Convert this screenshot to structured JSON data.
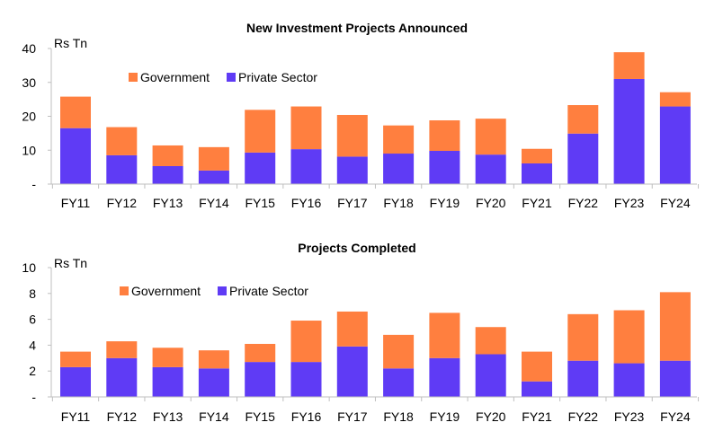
{
  "colors": {
    "government": "#FF7F3F",
    "private": "#5F3BF5",
    "axis": "#bfbfbf"
  },
  "chart_data": [
    {
      "type": "bar",
      "stacked": true,
      "title": "New Investment Projects Announced",
      "unit_label": "Rs Tn",
      "ylim": [
        0,
        40
      ],
      "yticks": [
        0,
        10,
        20,
        30,
        40
      ],
      "ytick_labels": [
        "-",
        "10",
        "20",
        "30",
        "40"
      ],
      "grid": false,
      "legend_position": "top-left",
      "categories": [
        "FY11",
        "FY12",
        "FY13",
        "FY14",
        "FY15",
        "FY16",
        "FY17",
        "FY18",
        "FY19",
        "FY20",
        "FY21",
        "FY22",
        "FY23",
        "FY24"
      ],
      "series": [
        {
          "name": "Private Sector",
          "color_key": "private",
          "values": [
            16.5,
            8.5,
            5.3,
            4.0,
            9.3,
            10.3,
            8.1,
            9.0,
            9.8,
            8.7,
            6.1,
            14.9,
            31.0,
            22.9
          ]
        },
        {
          "name": "Government",
          "color_key": "government",
          "values": [
            9.3,
            8.3,
            6.1,
            6.9,
            12.6,
            12.6,
            12.3,
            8.3,
            9.0,
            10.6,
            4.3,
            8.4,
            7.9,
            4.2
          ]
        }
      ],
      "legend_order": [
        "Government",
        "Private Sector"
      ]
    },
    {
      "type": "bar",
      "stacked": true,
      "title": "Projects Completed",
      "unit_label": "Rs Tn",
      "ylim": [
        0,
        10
      ],
      "yticks": [
        0,
        2,
        4,
        6,
        8,
        10
      ],
      "ytick_labels": [
        "-",
        "2",
        "4",
        "6",
        "8",
        "10"
      ],
      "grid": false,
      "legend_position": "top-left",
      "categories": [
        "FY11",
        "FY12",
        "FY13",
        "FY14",
        "FY15",
        "FY16",
        "FY17",
        "FY18",
        "FY19",
        "FY20",
        "FY21",
        "FY22",
        "FY23",
        "FY24"
      ],
      "series": [
        {
          "name": "Private Sector",
          "color_key": "private",
          "values": [
            2.3,
            3.0,
            2.3,
            2.2,
            2.7,
            2.7,
            3.9,
            2.2,
            3.0,
            3.3,
            1.2,
            2.8,
            2.6,
            2.8
          ]
        },
        {
          "name": "Government",
          "color_key": "government",
          "values": [
            1.2,
            1.3,
            1.5,
            1.4,
            1.4,
            3.2,
            2.7,
            2.6,
            3.5,
            2.1,
            2.3,
            3.6,
            4.1,
            5.3
          ]
        }
      ],
      "legend_order": [
        "Government",
        "Private Sector"
      ]
    }
  ]
}
